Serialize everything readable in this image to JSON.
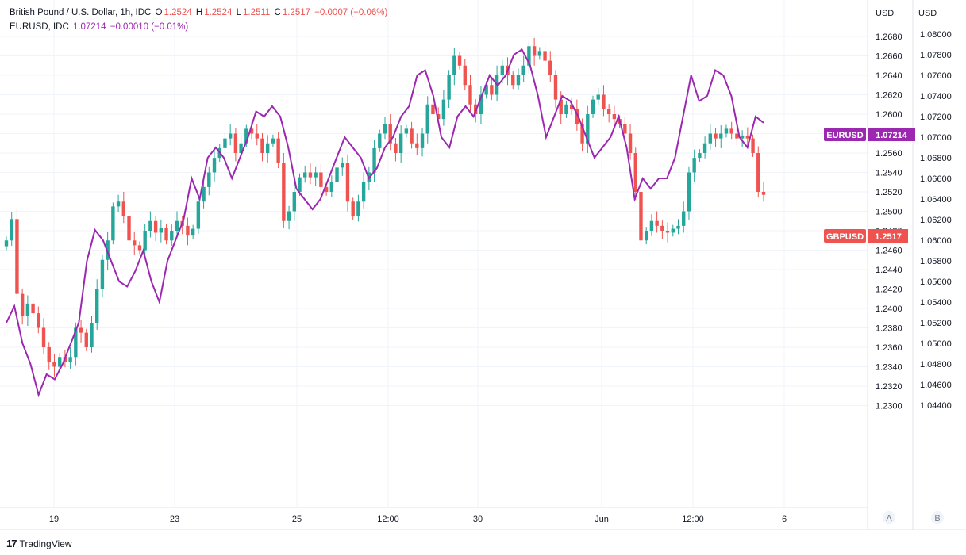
{
  "legend": {
    "main_name": "British Pound / U.S. Dollar, 1h, IDC",
    "o_label": "O",
    "o_value": "1.2524",
    "h_label": "H",
    "h_value": "1.2524",
    "l_label": "L",
    "l_value": "1.2511",
    "c_label": "C",
    "c_value": "1.2517",
    "change": "−0.0007 (−0.06%)",
    "sub_name": "EURUSD, IDC",
    "sub_value": "1.07214",
    "sub_change": "−0.00010 (−0.01%)"
  },
  "axis": {
    "left_currency": "USD",
    "right_currency": "USD",
    "scale_a": "A",
    "scale_b": "B"
  },
  "badges": {
    "eurusd_label": "EURUSD",
    "eurusd_value": "1.07214",
    "gbpusd_label": "GBPUSD",
    "gbpusd_value": "1.2517"
  },
  "footer": {
    "brand": "TradingView",
    "logo": "17"
  },
  "colors": {
    "up": "#26a69a",
    "down": "#ef5350",
    "eurusd": "#9c27b0",
    "grid": "#f0f3fa",
    "axis_text": "#131722"
  },
  "chart_data": {
    "type": "line",
    "x_ticks": [
      "19",
      "23",
      "25",
      "12:00",
      "30",
      "Jun",
      "12:00",
      "6"
    ],
    "gbpusd_axis": {
      "ylim": [
        1.2295,
        1.2695
      ],
      "ticks": [
        "1.2680",
        "1.2660",
        "1.2640",
        "1.2620",
        "1.2600",
        "1.2580",
        "1.2560",
        "1.2540",
        "1.2520",
        "1.2500",
        "1.2480",
        "1.2460",
        "1.2440",
        "1.2420",
        "1.2400",
        "1.2380",
        "1.2360",
        "1.2340",
        "1.2320",
        "1.2300"
      ]
    },
    "eurusd_axis": {
      "ylim": [
        1.043,
        1.081
      ],
      "ticks": [
        "1.08000",
        "1.07800",
        "1.07600",
        "1.07400",
        "1.07200",
        "1.07000",
        "1.06800",
        "1.06600",
        "1.06400",
        "1.06200",
        "1.06000",
        "1.05800",
        "1.05600",
        "1.05400",
        "1.05200",
        "1.05000",
        "1.04800",
        "1.04600",
        "1.04400"
      ]
    },
    "series": [
      {
        "name": "GBPUSD",
        "style": "candlestick",
        "close": [
          1.247,
          1.2492,
          1.2415,
          1.2392,
          1.2405,
          1.2395,
          1.238,
          1.236,
          1.2345,
          1.234,
          1.235,
          1.2345,
          1.235,
          1.238,
          1.2375,
          1.236,
          1.2385,
          1.242,
          1.245,
          1.247,
          1.2505,
          1.251,
          1.2495,
          1.247,
          1.2465,
          1.246,
          1.248,
          1.249,
          1.2478,
          1.2483,
          1.247,
          1.248,
          1.249,
          1.2485,
          1.2475,
          1.2482,
          1.251,
          1.2525,
          1.254,
          1.2555,
          1.2565,
          1.2575,
          1.258,
          1.256,
          1.257,
          1.2585,
          1.258,
          1.2575,
          1.256,
          1.257,
          1.2575,
          1.255,
          1.249,
          1.25,
          1.252,
          1.2535,
          1.254,
          1.2535,
          1.254,
          1.2525,
          1.252,
          1.253,
          1.2545,
          1.255,
          1.251,
          1.2495,
          1.251,
          1.253,
          1.254,
          1.2565,
          1.258,
          1.259,
          1.257,
          1.256,
          1.258,
          1.2585,
          1.257,
          1.2565,
          1.258,
          1.261,
          1.26,
          1.2595,
          1.2615,
          1.264,
          1.266,
          1.265,
          1.263,
          1.261,
          1.26,
          1.262,
          1.263,
          1.262,
          1.264,
          1.265,
          1.264,
          1.263,
          1.264,
          1.265,
          1.267,
          1.266,
          1.2665,
          1.2655,
          1.264,
          1.2615,
          1.26,
          1.261,
          1.2605,
          1.259,
          1.257,
          1.26,
          1.2615,
          1.262,
          1.2605,
          1.26,
          1.2595,
          1.259,
          1.258,
          1.256,
          1.252,
          1.247,
          1.248,
          1.249,
          1.2485,
          1.248,
          1.2478,
          1.2482,
          1.2485,
          1.25,
          1.254,
          1.2555,
          1.256,
          1.257,
          1.258,
          1.2575,
          1.258,
          1.2585,
          1.258,
          1.2575,
          1.2578,
          1.2575,
          1.256,
          1.252,
          1.2517
        ]
      },
      {
        "name": "EURUSD",
        "style": "line",
        "values": [
          1.052,
          1.0536,
          1.05,
          1.048,
          1.045,
          1.047,
          1.0465,
          1.048,
          1.05,
          1.052,
          1.058,
          1.061,
          1.06,
          1.058,
          1.056,
          1.0555,
          1.057,
          1.059,
          1.056,
          1.054,
          1.058,
          1.06,
          1.062,
          1.066,
          1.064,
          1.068,
          1.069,
          1.068,
          1.066,
          1.068,
          1.07,
          1.0725,
          1.072,
          1.073,
          1.072,
          1.069,
          1.065,
          1.064,
          1.063,
          1.064,
          1.066,
          1.068,
          1.07,
          1.069,
          1.068,
          1.066,
          1.067,
          1.069,
          1.07,
          1.072,
          1.073,
          1.076,
          1.0765,
          1.074,
          1.07,
          1.069,
          1.072,
          1.073,
          1.072,
          1.074,
          1.076,
          1.075,
          1.076,
          1.078,
          1.0785,
          1.077,
          1.074,
          1.07,
          1.072,
          1.074,
          1.0735,
          1.072,
          1.07,
          1.068,
          1.069,
          1.07,
          1.072,
          1.069,
          1.064,
          1.066,
          1.065,
          1.066,
          1.066,
          1.068,
          1.072,
          1.076,
          1.0735,
          1.074,
          1.0765,
          1.076,
          1.074,
          1.07,
          1.069,
          1.072,
          1.0714
        ]
      }
    ]
  }
}
